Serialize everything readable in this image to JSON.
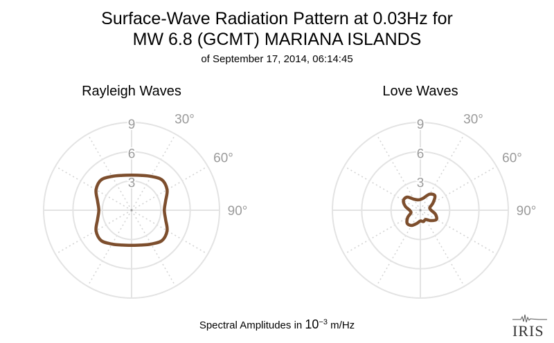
{
  "title": {
    "line1": "Surface-Wave Radiation Pattern at 0.03Hz for",
    "line2": "MW 6.8 (GCMT) MARIANA ISLANDS",
    "line3": "of September 17, 2014, 06:14:45"
  },
  "footer": {
    "prefix": "Spectral Amplitudes in ",
    "base": "10",
    "exponent": "−3",
    "unit": " m/Hz"
  },
  "logo": {
    "text": "IRIS"
  },
  "colors": {
    "curve": "#7d4e2d",
    "grid": "#e3e3e3",
    "grid_dotted": "#d4d4d4",
    "labels": "#9a9a9a"
  },
  "chart_data": [
    {
      "type": "polar",
      "title": "Rayleigh Waves",
      "r_ticks": [
        3,
        6,
        9
      ],
      "r_tick_labels": [
        "3",
        "6",
        "9"
      ],
      "r_max": 9,
      "theta_ticks": [
        30,
        60,
        90
      ],
      "theta_tick_labels": [
        "30°",
        "60°",
        "90°"
      ],
      "theta_zero": "north",
      "theta_direction": "clockwise",
      "grid": true,
      "series": [
        {
          "azimuth_deg": [
            0,
            15,
            30,
            45,
            60,
            75,
            90,
            105,
            120,
            135,
            150,
            165,
            180,
            195,
            210,
            225,
            240,
            255,
            270,
            285,
            300,
            315,
            330,
            345,
            360
          ],
          "amplitude": [
            3.6,
            3.7,
            4.0,
            4.4,
            4.2,
            3.6,
            3.35,
            3.6,
            4.2,
            4.4,
            4.0,
            3.7,
            3.6,
            3.7,
            4.0,
            4.4,
            4.2,
            3.6,
            3.35,
            3.6,
            4.2,
            4.4,
            4.0,
            3.7,
            3.6
          ]
        }
      ]
    },
    {
      "type": "polar",
      "title": "Love Waves",
      "r_ticks": [
        3,
        6,
        9
      ],
      "r_tick_labels": [
        "3",
        "6",
        "9"
      ],
      "r_max": 9,
      "theta_ticks": [
        30,
        60,
        90
      ],
      "theta_tick_labels": [
        "30°",
        "60°",
        "90°"
      ],
      "theta_zero": "north",
      "theta_direction": "clockwise",
      "grid": true,
      "series": [
        {
          "azimuth_deg": [
            0,
            15,
            30,
            45,
            60,
            75,
            90,
            105,
            120,
            135,
            150,
            165,
            180,
            195,
            210,
            225,
            240,
            255,
            270,
            285,
            300,
            315,
            330,
            345,
            360
          ],
          "amplitude": [
            1.1,
            1.3,
            1.9,
            2.1,
            1.5,
            1.0,
            1.1,
            1.6,
            1.9,
            1.5,
            1.1,
            1.2,
            1.1,
            1.4,
            1.8,
            1.9,
            1.5,
            1.0,
            1.1,
            1.6,
            2.0,
            1.9,
            1.3,
            1.1,
            1.1
          ]
        }
      ]
    }
  ]
}
